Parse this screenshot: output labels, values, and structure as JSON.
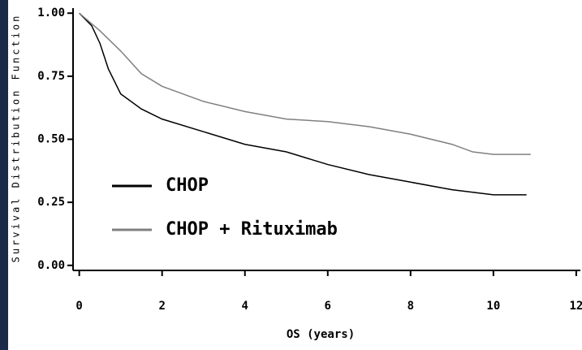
{
  "chart_data": {
    "type": "line",
    "y_label": "Survival Distribution Function",
    "x_label": "OS (years)",
    "xlim": [
      -0.15,
      12.1
    ],
    "ylim": [
      -0.02,
      1.02
    ],
    "xticks": [
      0,
      2,
      4,
      6,
      8,
      10,
      12
    ],
    "yticks": [
      {
        "value": 0,
        "label": "0.00"
      },
      {
        "value": 0.25,
        "label": "0.25"
      },
      {
        "value": 0.5,
        "label": "0.50"
      },
      {
        "value": 0.75,
        "label": "0.75"
      },
      {
        "value": 1,
        "label": "1.00"
      }
    ],
    "legend": "lower left",
    "series": [
      {
        "name": "CHOP",
        "color": "#000000",
        "x": [
          0,
          0.3,
          0.5,
          0.7,
          1,
          1.5,
          2,
          3,
          4,
          5,
          6,
          7,
          8,
          9,
          10,
          10.8
        ],
        "values": [
          1,
          0.95,
          0.88,
          0.78,
          0.68,
          0.62,
          0.58,
          0.53,
          0.48,
          0.45,
          0.4,
          0.36,
          0.33,
          0.3,
          0.28,
          0.28
        ]
      },
      {
        "name": "CHOP + Rituximab",
        "color": "#808080",
        "x": [
          0,
          0.5,
          1,
          1.5,
          2,
          3,
          4,
          5,
          6,
          7,
          8,
          9,
          9.5,
          10,
          10.9
        ],
        "values": [
          1,
          0.93,
          0.85,
          0.76,
          0.71,
          0.65,
          0.61,
          0.58,
          0.57,
          0.55,
          0.52,
          0.48,
          0.45,
          0.44,
          0.44
        ]
      }
    ]
  }
}
